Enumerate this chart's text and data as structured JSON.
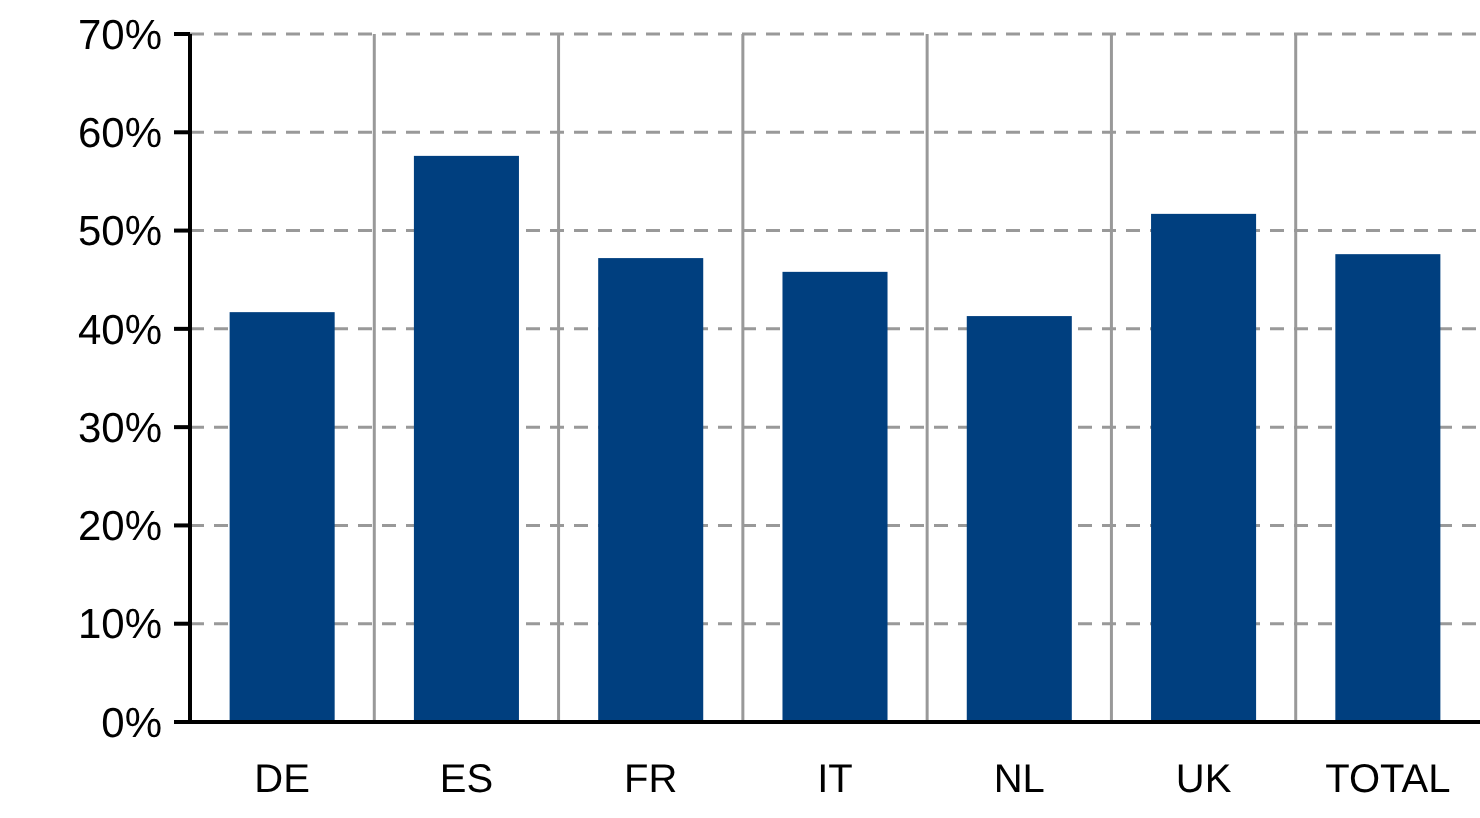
{
  "chart_data": {
    "type": "bar",
    "categories": [
      "DE",
      "ES",
      "FR",
      "IT",
      "NL",
      "UK",
      "TOTAL"
    ],
    "values": [
      41.7,
      57.6,
      47.2,
      45.8,
      41.3,
      51.7,
      47.6
    ],
    "color": "#003f7f",
    "ylim": [
      0,
      70
    ],
    "yticks": [
      {
        "value": 0,
        "label": "0%"
      },
      {
        "value": 10,
        "label": "10%"
      },
      {
        "value": 20,
        "label": "20%"
      },
      {
        "value": 30,
        "label": "30%"
      },
      {
        "value": 40,
        "label": "40%"
      },
      {
        "value": 50,
        "label": "50%"
      },
      {
        "value": 60,
        "label": "60%"
      },
      {
        "value": 70,
        "label": "70%"
      }
    ],
    "grid": true
  }
}
